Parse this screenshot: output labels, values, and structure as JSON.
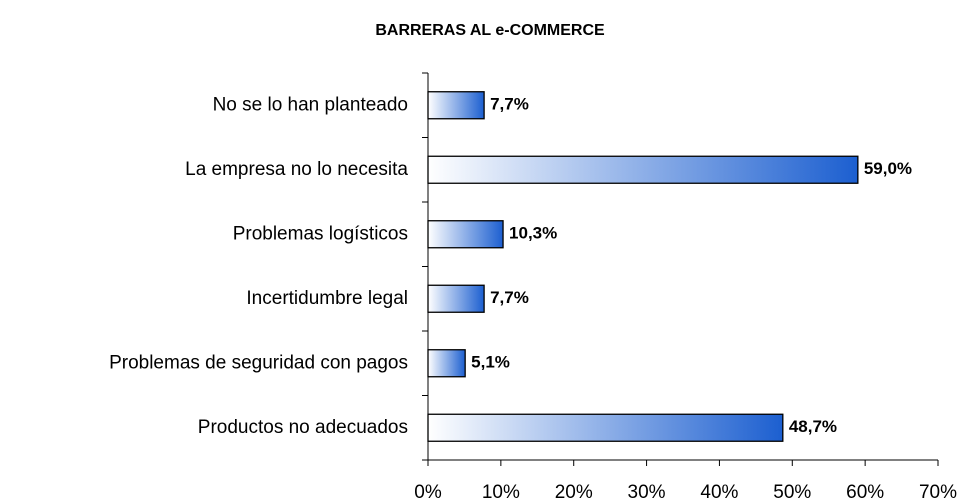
{
  "chart_data": {
    "type": "bar",
    "orientation": "horizontal",
    "title": "BARRERAS AL e-COMMERCE",
    "categories": [
      "No se lo han planteado",
      "La empresa no lo necesita",
      "Problemas logísticos",
      "Incertidumbre legal",
      "Problemas de seguridad con pagos",
      "Productos no adecuados"
    ],
    "values": [
      7.7,
      59.0,
      10.3,
      7.7,
      5.1,
      48.7
    ],
    "value_labels": [
      "7,7%",
      "59,0%",
      "10,3%",
      "7,7%",
      "5,1%",
      "48,7%"
    ],
    "color": "#1c5fd0",
    "xlim": [
      0,
      70
    ],
    "xticks": [
      {
        "value": 0,
        "label": "0%"
      },
      {
        "value": 10,
        "label": "10%"
      },
      {
        "value": 20,
        "label": "20%"
      },
      {
        "value": 30,
        "label": "30%"
      },
      {
        "value": 40,
        "label": "40%"
      },
      {
        "value": 50,
        "label": "50%"
      },
      {
        "value": 60,
        "label": "60%"
      },
      {
        "value": 70,
        "label": "70%"
      }
    ]
  }
}
